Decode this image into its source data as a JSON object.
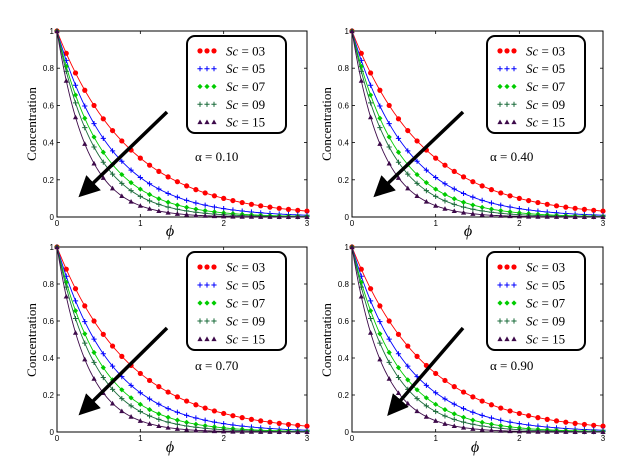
{
  "chart_data": [
    {
      "type": "line",
      "title": "",
      "ylabel": "Concentration",
      "xlabel": "ϕ",
      "xlim": [
        0,
        3
      ],
      "ylim": [
        0,
        1
      ],
      "xticks": [
        "0",
        "1",
        "2",
        "3"
      ],
      "yticks": [
        "0",
        "0.2",
        "0.4",
        "0.6",
        "0.8",
        "1"
      ],
      "annotation": "α = 0.10",
      "decay_rates": [
        1.15,
        1.55,
        1.9,
        2.2,
        2.8
      ],
      "legend": [
        "Sc = 03",
        "Sc = 05",
        "Sc = 07",
        "Sc = 09",
        "Sc = 15"
      ]
    },
    {
      "type": "line",
      "title": "",
      "ylabel": "Concentration",
      "xlabel": "ϕ",
      "xlim": [
        0,
        3
      ],
      "ylim": [
        0,
        1
      ],
      "xticks": [
        "0",
        "1",
        "2",
        "3"
      ],
      "yticks": [
        "0",
        "0.2",
        "0.4",
        "0.6",
        "0.8",
        "1"
      ],
      "annotation": "α = 0.40",
      "decay_rates": [
        1.15,
        1.55,
        1.9,
        2.2,
        2.8
      ],
      "legend": [
        "Sc = 03",
        "Sc = 05",
        "Sc = 07",
        "Sc = 09",
        "Sc = 15"
      ]
    },
    {
      "type": "line",
      "title": "",
      "ylabel": "Concentration",
      "xlabel": "ϕ",
      "xlim": [
        0,
        3
      ],
      "ylim": [
        0,
        1
      ],
      "xticks": [
        "0",
        "1",
        "2",
        "3"
      ],
      "yticks": [
        "0",
        "0.2",
        "0.4",
        "0.6",
        "0.8",
        "1"
      ],
      "annotation": "α = 0.70",
      "decay_rates": [
        1.15,
        1.55,
        1.9,
        2.2,
        2.8
      ],
      "legend": [
        "Sc = 03",
        "Sc = 05",
        "Sc = 07",
        "Sc = 09",
        "Sc = 15"
      ]
    },
    {
      "type": "line",
      "title": "",
      "ylabel": "Concentration",
      "xlabel": "ϕ",
      "xlim": [
        0,
        3
      ],
      "ylim": [
        0,
        1
      ],
      "xticks": [
        "0",
        "1",
        "2",
        "3"
      ],
      "yticks": [
        "0",
        "0.2",
        "0.4",
        "0.6",
        "0.8",
        "1"
      ],
      "annotation": "α = 0.90",
      "decay_rates": [
        1.15,
        1.55,
        1.9,
        2.2,
        2.8
      ],
      "legend": [
        "Sc = 03",
        "Sc = 05",
        "Sc = 07",
        "Sc = 09",
        "Sc = 15"
      ]
    }
  ],
  "series_style": [
    {
      "name": "Sc = 03",
      "color": "#ff0000",
      "marker": "circle"
    },
    {
      "name": "Sc = 05",
      "color": "#0000ff",
      "marker": "plus"
    },
    {
      "name": "Sc = 07",
      "color": "#00cc00",
      "marker": "diamond"
    },
    {
      "name": "Sc = 09",
      "color": "#1a6b3a",
      "marker": "plus"
    },
    {
      "name": "Sc = 15",
      "color": "#3d0a4a",
      "marker": "triangle"
    }
  ]
}
